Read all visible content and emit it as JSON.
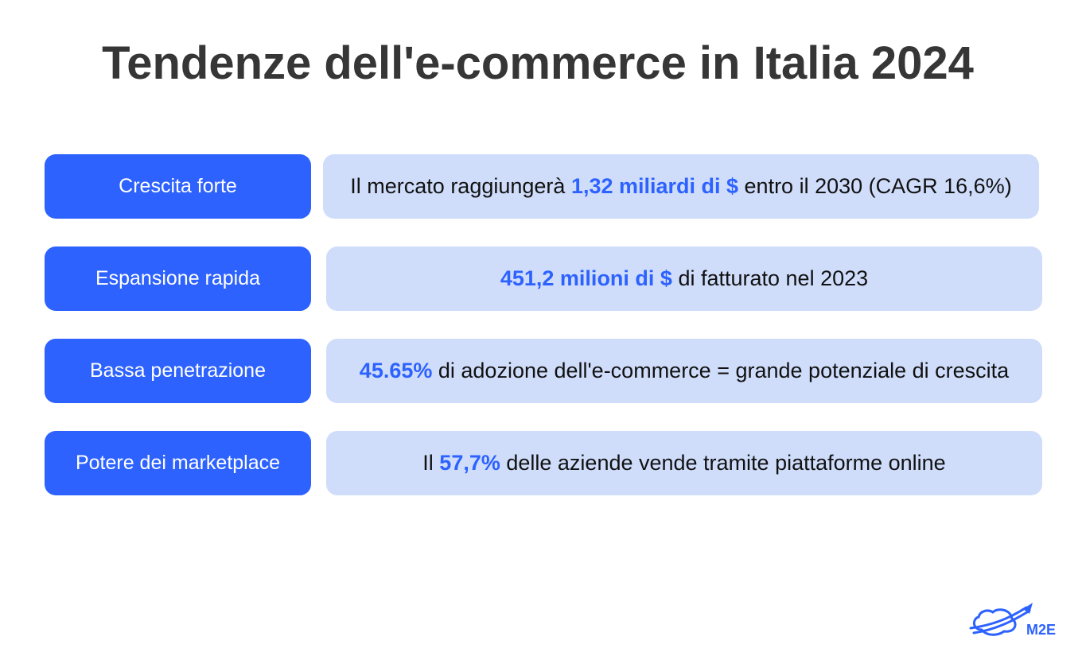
{
  "title": "Tendenze dell'e-commerce in Italia 2024",
  "colors": {
    "accent": "#2d62ff",
    "panel": "#cfddfb",
    "title": "#363636"
  },
  "rows": [
    {
      "label": "Crescita forte",
      "pre": "Il mercato raggiungerà ",
      "highlight": "1,32 miliardi di $",
      "post": " entro il 2030 (CAGR 16,6%)"
    },
    {
      "label": "Espansione rapida",
      "pre": "",
      "highlight": "451,2 milioni di $",
      "post": " di fatturato nel 2023"
    },
    {
      "label": "Bassa penetrazione",
      "pre": "",
      "highlight": "45.65%",
      "post": " di adozione dell'e-commerce = grande potenziale di crescita"
    },
    {
      "label": "Potere dei marketplace",
      "pre": "Il ",
      "highlight": "57,7%",
      "post": " delle aziende vende tramite piattaforme online"
    }
  ],
  "logo": {
    "text": "M2E",
    "icon": "rocket-planet-icon"
  }
}
